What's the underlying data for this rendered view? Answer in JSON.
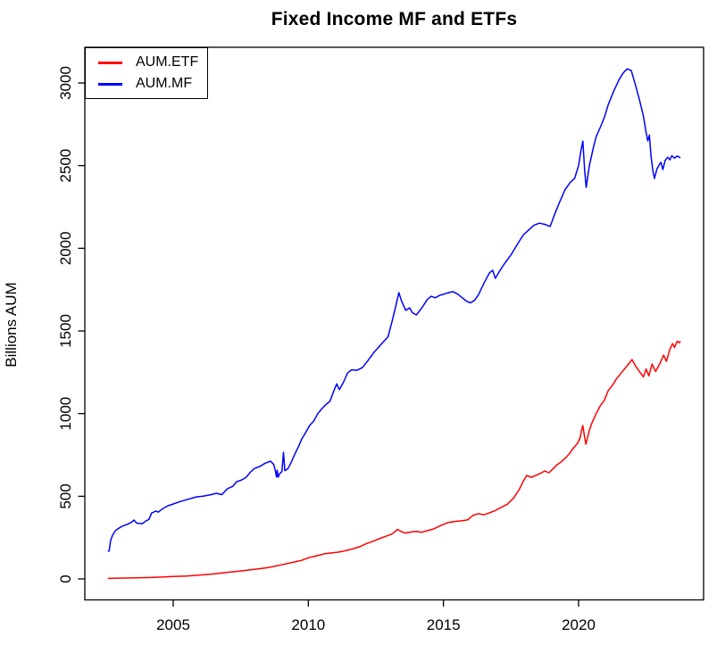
{
  "title": "Fixed Income MF and ETFs",
  "y_axis": {
    "label": "Billions AUM",
    "ticks": [
      "0",
      "500",
      "1000",
      "1500",
      "2000",
      "2500",
      "3000"
    ]
  },
  "x_axis": {
    "ticks": [
      "2005",
      "2010",
      "2015",
      "2020"
    ]
  },
  "legend": {
    "entries": [
      {
        "label": "AUM.ETF",
        "color": "#FF0000"
      },
      {
        "label": "AUM.MF",
        "color": "#0000FF"
      }
    ]
  },
  "chart_data": {
    "type": "line",
    "title": "Fixed Income MF and ETFs",
    "xlabel": "",
    "ylabel": "Billions AUM",
    "xlim": [
      2001.7,
      2024.6
    ],
    "ylim": [
      0,
      3100
    ],
    "x_ticks": [
      2005,
      2010,
      2015,
      2020
    ],
    "y_ticks": [
      0,
      500,
      1000,
      1500,
      2000,
      2500,
      3000
    ],
    "grid": false,
    "legend_position": "topleft",
    "series": [
      {
        "name": "AUM.ETF",
        "color": "#FF0000",
        "points": [
          [
            2002.58,
            3
          ],
          [
            2003.0,
            5
          ],
          [
            2003.5,
            6
          ],
          [
            2004.0,
            8
          ],
          [
            2004.5,
            11
          ],
          [
            2005.0,
            15
          ],
          [
            2005.5,
            18
          ],
          [
            2006.0,
            24
          ],
          [
            2006.5,
            30
          ],
          [
            2007.0,
            40
          ],
          [
            2007.5,
            48
          ],
          [
            2008.0,
            58
          ],
          [
            2008.5,
            68
          ],
          [
            2009.0,
            85
          ],
          [
            2009.5,
            103
          ],
          [
            2009.75,
            112
          ],
          [
            2010.0,
            128
          ],
          [
            2010.3,
            140
          ],
          [
            2010.6,
            152
          ],
          [
            2010.9,
            158
          ],
          [
            2011.1,
            162
          ],
          [
            2011.3,
            168
          ],
          [
            2011.6,
            180
          ],
          [
            2011.9,
            195
          ],
          [
            2012.1,
            210
          ],
          [
            2012.4,
            228
          ],
          [
            2012.7,
            248
          ],
          [
            2012.9,
            260
          ],
          [
            2013.1,
            272
          ],
          [
            2013.3,
            300
          ],
          [
            2013.45,
            285
          ],
          [
            2013.6,
            278
          ],
          [
            2013.8,
            284
          ],
          [
            2014.0,
            288
          ],
          [
            2014.2,
            282
          ],
          [
            2014.4,
            292
          ],
          [
            2014.6,
            300
          ],
          [
            2014.8,
            315
          ],
          [
            2015.0,
            330
          ],
          [
            2015.2,
            342
          ],
          [
            2015.45,
            348
          ],
          [
            2015.7,
            352
          ],
          [
            2015.9,
            358
          ],
          [
            2016.1,
            385
          ],
          [
            2016.3,
            395
          ],
          [
            2016.5,
            388
          ],
          [
            2016.7,
            400
          ],
          [
            2016.9,
            412
          ],
          [
            2017.1,
            430
          ],
          [
            2017.35,
            450
          ],
          [
            2017.6,
            490
          ],
          [
            2017.8,
            540
          ],
          [
            2017.95,
            590
          ],
          [
            2018.08,
            626
          ],
          [
            2018.25,
            615
          ],
          [
            2018.45,
            628
          ],
          [
            2018.6,
            640
          ],
          [
            2018.75,
            653
          ],
          [
            2018.9,
            642
          ],
          [
            2019.05,
            665
          ],
          [
            2019.2,
            690
          ],
          [
            2019.35,
            707
          ],
          [
            2019.5,
            730
          ],
          [
            2019.65,
            755
          ],
          [
            2019.8,
            790
          ],
          [
            2019.95,
            818
          ],
          [
            2020.05,
            850
          ],
          [
            2020.12,
            905
          ],
          [
            2020.16,
            928
          ],
          [
            2020.22,
            860
          ],
          [
            2020.27,
            815
          ],
          [
            2020.4,
            900
          ],
          [
            2020.5,
            945
          ],
          [
            2020.65,
            1000
          ],
          [
            2020.8,
            1046
          ],
          [
            2020.95,
            1080
          ],
          [
            2021.1,
            1140
          ],
          [
            2021.25,
            1170
          ],
          [
            2021.4,
            1210
          ],
          [
            2021.6,
            1250
          ],
          [
            2021.8,
            1290
          ],
          [
            2021.98,
            1327
          ],
          [
            2022.1,
            1290
          ],
          [
            2022.25,
            1255
          ],
          [
            2022.4,
            1222
          ],
          [
            2022.5,
            1270
          ],
          [
            2022.6,
            1228
          ],
          [
            2022.72,
            1300
          ],
          [
            2022.85,
            1255
          ],
          [
            2023.0,
            1300
          ],
          [
            2023.15,
            1354
          ],
          [
            2023.25,
            1316
          ],
          [
            2023.38,
            1390
          ],
          [
            2023.48,
            1424
          ],
          [
            2023.55,
            1400
          ],
          [
            2023.65,
            1438
          ],
          [
            2023.72,
            1428
          ],
          [
            2023.77,
            1438
          ]
        ]
      },
      {
        "name": "AUM.MF",
        "color": "#0000FF",
        "points": [
          [
            2002.58,
            167
          ],
          [
            2002.63,
            170
          ],
          [
            2002.68,
            230
          ],
          [
            2002.75,
            262
          ],
          [
            2002.85,
            290
          ],
          [
            2002.95,
            303
          ],
          [
            2003.1,
            318
          ],
          [
            2003.3,
            330
          ],
          [
            2003.45,
            342
          ],
          [
            2003.55,
            356
          ],
          [
            2003.65,
            338
          ],
          [
            2003.85,
            334
          ],
          [
            2004.0,
            352
          ],
          [
            2004.1,
            360
          ],
          [
            2004.2,
            398
          ],
          [
            2004.35,
            410
          ],
          [
            2004.45,
            404
          ],
          [
            2004.6,
            424
          ],
          [
            2004.8,
            442
          ],
          [
            2005.0,
            453
          ],
          [
            2005.25,
            468
          ],
          [
            2005.55,
            482
          ],
          [
            2005.85,
            496
          ],
          [
            2006.1,
            500
          ],
          [
            2006.35,
            508
          ],
          [
            2006.6,
            518
          ],
          [
            2006.8,
            510
          ],
          [
            2007.0,
            545
          ],
          [
            2007.2,
            560
          ],
          [
            2007.35,
            588
          ],
          [
            2007.55,
            600
          ],
          [
            2007.7,
            615
          ],
          [
            2007.85,
            645
          ],
          [
            2008.0,
            668
          ],
          [
            2008.2,
            680
          ],
          [
            2008.4,
            700
          ],
          [
            2008.6,
            712
          ],
          [
            2008.72,
            692
          ],
          [
            2008.78,
            655
          ],
          [
            2008.82,
            618
          ],
          [
            2008.85,
            658
          ],
          [
            2008.88,
            615
          ],
          [
            2008.95,
            640
          ],
          [
            2009.02,
            648
          ],
          [
            2009.08,
            766
          ],
          [
            2009.13,
            655
          ],
          [
            2009.25,
            668
          ],
          [
            2009.35,
            700
          ],
          [
            2009.5,
            755
          ],
          [
            2009.65,
            805
          ],
          [
            2009.75,
            845
          ],
          [
            2009.9,
            885
          ],
          [
            2010.05,
            928
          ],
          [
            2010.2,
            955
          ],
          [
            2010.35,
            1000
          ],
          [
            2010.5,
            1030
          ],
          [
            2010.65,
            1055
          ],
          [
            2010.8,
            1075
          ],
          [
            2010.95,
            1140
          ],
          [
            2011.05,
            1180
          ],
          [
            2011.15,
            1145
          ],
          [
            2011.3,
            1190
          ],
          [
            2011.45,
            1245
          ],
          [
            2011.6,
            1265
          ],
          [
            2011.8,
            1262
          ],
          [
            2012.0,
            1278
          ],
          [
            2012.2,
            1320
          ],
          [
            2012.45,
            1375
          ],
          [
            2012.7,
            1420
          ],
          [
            2012.95,
            1465
          ],
          [
            2013.1,
            1560
          ],
          [
            2013.25,
            1660
          ],
          [
            2013.35,
            1732
          ],
          [
            2013.45,
            1680
          ],
          [
            2013.6,
            1625
          ],
          [
            2013.75,
            1640
          ],
          [
            2013.85,
            1610
          ],
          [
            2014.0,
            1597
          ],
          [
            2014.2,
            1640
          ],
          [
            2014.4,
            1690
          ],
          [
            2014.55,
            1710
          ],
          [
            2014.7,
            1700
          ],
          [
            2014.85,
            1715
          ],
          [
            2015.0,
            1722
          ],
          [
            2015.15,
            1730
          ],
          [
            2015.35,
            1738
          ],
          [
            2015.55,
            1720
          ],
          [
            2015.7,
            1700
          ],
          [
            2015.85,
            1680
          ],
          [
            2016.0,
            1670
          ],
          [
            2016.15,
            1685
          ],
          [
            2016.3,
            1720
          ],
          [
            2016.5,
            1790
          ],
          [
            2016.7,
            1850
          ],
          [
            2016.82,
            1867
          ],
          [
            2016.92,
            1818
          ],
          [
            2017.05,
            1855
          ],
          [
            2017.25,
            1905
          ],
          [
            2017.5,
            1960
          ],
          [
            2017.75,
            2028
          ],
          [
            2017.95,
            2080
          ],
          [
            2018.15,
            2110
          ],
          [
            2018.35,
            2140
          ],
          [
            2018.55,
            2152
          ],
          [
            2018.75,
            2145
          ],
          [
            2018.95,
            2132
          ],
          [
            2019.1,
            2200
          ],
          [
            2019.3,
            2280
          ],
          [
            2019.5,
            2355
          ],
          [
            2019.7,
            2400
          ],
          [
            2019.85,
            2422
          ],
          [
            2020.0,
            2500
          ],
          [
            2020.1,
            2600
          ],
          [
            2020.16,
            2648
          ],
          [
            2020.22,
            2480
          ],
          [
            2020.28,
            2368
          ],
          [
            2020.4,
            2500
          ],
          [
            2020.55,
            2610
          ],
          [
            2020.65,
            2675
          ],
          [
            2020.8,
            2730
          ],
          [
            2020.95,
            2790
          ],
          [
            2021.1,
            2870
          ],
          [
            2021.3,
            2950
          ],
          [
            2021.5,
            3020
          ],
          [
            2021.65,
            3060
          ],
          [
            2021.8,
            3085
          ],
          [
            2021.95,
            3075
          ],
          [
            2022.1,
            2990
          ],
          [
            2022.25,
            2900
          ],
          [
            2022.4,
            2800
          ],
          [
            2022.5,
            2700
          ],
          [
            2022.56,
            2650
          ],
          [
            2022.62,
            2685
          ],
          [
            2022.68,
            2560
          ],
          [
            2022.75,
            2470
          ],
          [
            2022.81,
            2422
          ],
          [
            2022.9,
            2480
          ],
          [
            2023.0,
            2510
          ],
          [
            2023.05,
            2519
          ],
          [
            2023.12,
            2476
          ],
          [
            2023.2,
            2530
          ],
          [
            2023.3,
            2551
          ],
          [
            2023.38,
            2535
          ],
          [
            2023.45,
            2560
          ],
          [
            2023.55,
            2545
          ],
          [
            2023.65,
            2558
          ],
          [
            2023.77,
            2548
          ]
        ]
      }
    ]
  }
}
